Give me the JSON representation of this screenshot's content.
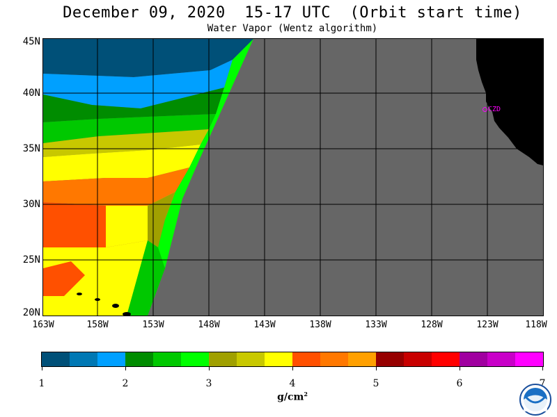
{
  "header": {
    "title": "December 09, 2020  15-17 UTC  (Orbit start time)",
    "subtitle": "Water Vapor (Wentz algorithm)"
  },
  "map": {
    "lat_labels": [
      "45N",
      "40N",
      "35N",
      "30N",
      "25N",
      "20N"
    ],
    "lon_labels": [
      "163W",
      "158W",
      "153W",
      "148W",
      "143W",
      "138W",
      "133W",
      "128W",
      "123W",
      "118W"
    ],
    "station_label": "CZD",
    "colors": {
      "no_data": "#666666",
      "land": "#000000",
      "station": "#ff00ff"
    }
  },
  "colorbar": {
    "colors": [
      "#005078",
      "#0078b4",
      "#00a0ff",
      "#008c00",
      "#00c800",
      "#00ff00",
      "#a0a000",
      "#c8c800",
      "#ffff00",
      "#ff5000",
      "#ff7800",
      "#ffa000",
      "#960000",
      "#c80000",
      "#ff0000",
      "#a000a0",
      "#c800c8",
      "#ff00ff"
    ],
    "tick_labels": [
      "1",
      "2",
      "3",
      "4",
      "5",
      "6",
      "7"
    ],
    "units": "g/cm",
    "units_power": "2"
  }
}
